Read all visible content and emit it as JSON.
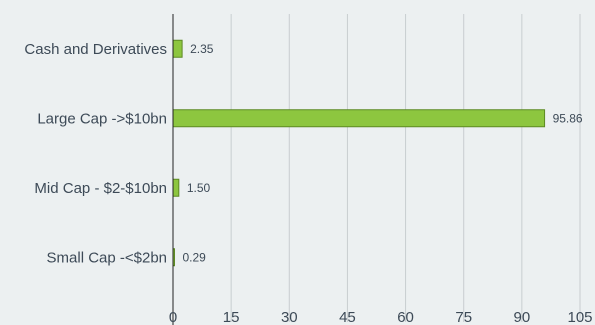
{
  "chart_data": {
    "type": "bar",
    "orientation": "horizontal",
    "categories": [
      "Cash and Derivatives",
      "Large Cap ->$10bn",
      "Mid Cap - $2-$10bn",
      "Small Cap -<$2bn"
    ],
    "values": [
      2.35,
      95.86,
      1.5,
      0.29
    ],
    "data_labels": [
      "2.35",
      "95.86",
      "1.50",
      "0.29"
    ],
    "xlim": [
      0,
      105
    ],
    "xticks": [
      0,
      15,
      30,
      45,
      60,
      75,
      90,
      105
    ],
    "grid": "vertical",
    "legend": "none",
    "title": "",
    "xlabel": "",
    "ylabel": "",
    "colors": {
      "bar_fill": "#8dc63f",
      "bar_stroke": "#5d8a23",
      "grid": "#c8cdd0",
      "axis": "#222222",
      "text": "#3d4a57",
      "background": "#ecf0f1"
    }
  }
}
